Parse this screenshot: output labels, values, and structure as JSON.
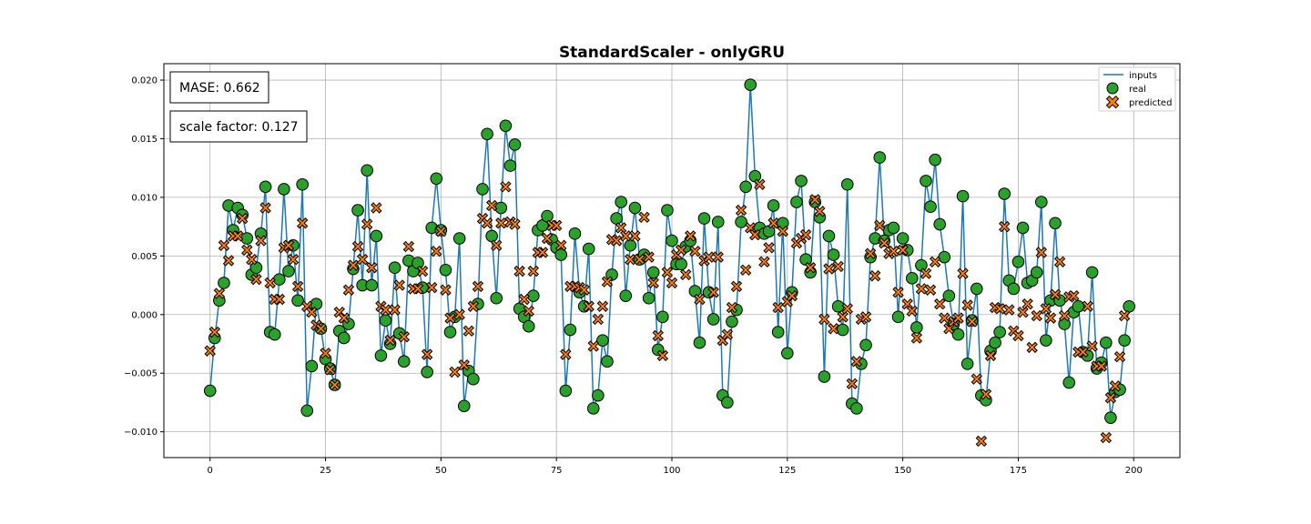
{
  "chart_data": {
    "type": "line",
    "title": "StandardScaler - onlyGRU",
    "xlabel": "",
    "ylabel": "",
    "xlim": [
      -10,
      210
    ],
    "ylim": [
      -0.0122,
      0.0214
    ],
    "xticks": [
      0,
      25,
      50,
      75,
      100,
      125,
      150,
      175,
      200
    ],
    "xtick_labels": [
      "0",
      "25",
      "50",
      "75",
      "100",
      "125",
      "150",
      "175",
      "200"
    ],
    "yticks": [
      -0.01,
      -0.005,
      0.0,
      0.005,
      0.01,
      0.015,
      0.02
    ],
    "ytick_labels": [
      "−0.010",
      "−0.005",
      "0.000",
      "0.005",
      "0.010",
      "0.015",
      "0.020"
    ],
    "grid": true,
    "legend_position": "top-right",
    "annotations": [
      "MASE: 0.662",
      "scale factor: 0.127"
    ],
    "colors": {
      "inputs": "#1f77b4",
      "real": "#2ca02c",
      "predicted": "#ff7f0e",
      "edge": "#000000"
    },
    "series": [
      {
        "name": "inputs",
        "kind": "line",
        "x_start": 0,
        "values": [
          -0.0065,
          -0.002,
          0.0012,
          0.0027,
          0.0093,
          0.0072,
          0.0091,
          0.0085,
          0.0065,
          0.0034,
          0.004,
          0.0069,
          0.0109,
          -0.0015,
          -0.0017,
          0.003,
          0.0107,
          0.0037,
          0.0059,
          0.0012,
          0.0111,
          -0.0082,
          -0.0044,
          0.0009,
          -0.0012,
          -0.0038,
          -0.0046,
          -0.006,
          -0.0014,
          -0.002,
          -0.0008,
          0.0039,
          0.0089,
          0.0025,
          0.0123,
          0.0025,
          0.0067,
          -0.0035,
          -0.0005,
          -0.0025,
          0.004,
          -0.0016,
          -0.004,
          0.0046,
          0.0037,
          0.0044,
          0.0023,
          -0.0049,
          0.0074,
          0.0116,
          0.0072,
          0.0038,
          -0.0015,
          -0.0002,
          0.0065,
          -0.0078,
          -0.0048,
          -0.0055,
          0.0009,
          0.0107,
          0.0154,
          0.0067,
          0.0014,
          0.0091,
          0.0161,
          0.0127,
          0.0145,
          0.0005,
          -0.0002,
          -0.001,
          0.0016,
          0.0072,
          0.0076,
          0.0084,
          0.0064,
          0.0057,
          0.0051,
          -0.0065,
          -0.0013,
          0.0069,
          0.0019,
          0.0007,
          0.0056,
          -0.008,
          -0.0069,
          -0.0022,
          -0.004,
          0.0034,
          0.0082,
          0.0096,
          0.0016,
          0.0059,
          0.0091,
          0.0047,
          0.0051,
          0.0014,
          0.0036,
          -0.003,
          -0.0002,
          0.0089,
          0.0063,
          0.0043,
          0.0043,
          0.0058,
          0.0063,
          0.002,
          -0.0024,
          0.0082,
          0.0019,
          -0.0004,
          0.0079,
          -0.0069,
          -0.0075,
          -0.0006,
          0.0004,
          0.0079,
          0.0109,
          0.0196,
          0.0118,
          0.0074,
          0.0069,
          0.0071,
          0.0093,
          -0.0015,
          0.0078,
          -0.0033,
          0.0019,
          0.0096,
          0.0114,
          0.0047,
          0.0036,
          0.0096,
          0.0083,
          -0.0053,
          0.0067,
          0.0051,
          0.0007,
          -0.0013,
          0.0111,
          -0.0076,
          -0.008,
          -0.0042,
          -0.0026,
          0.0049,
          0.0065,
          0.0134,
          0.0063,
          0.0072,
          0.0074,
          -0.0002,
          0.0065,
          0.0055,
          0.0031,
          -0.0011,
          0.0042,
          0.0114,
          0.0092,
          0.0132,
          0.0077,
          0.0049,
          0.0016,
          -0.0008,
          -0.0017,
          0.0101,
          -0.0042,
          -0.0005,
          0.0022,
          -0.0069,
          -0.0073,
          -0.0031,
          -0.0024,
          -0.0015,
          0.0103,
          0.0029,
          0.0022,
          0.0045,
          0.0074,
          0.0027,
          0.0029,
          0.0036,
          0.0096,
          -0.0022,
          0.0012,
          0.0078,
          0.0012,
          -0.0008,
          -0.0058,
          0.0002,
          0.0007,
          -0.0032,
          -0.0035,
          0.0036,
          -0.0046,
          -0.0041,
          -0.0024,
          -0.0088,
          -0.0066,
          -0.0064,
          -0.0022,
          0.0007
        ]
      },
      {
        "name": "real",
        "kind": "scatter",
        "x_start": 0,
        "values": [
          -0.0065,
          -0.002,
          0.0012,
          0.0027,
          0.0093,
          0.0072,
          0.0091,
          0.0085,
          0.0065,
          0.0034,
          0.004,
          0.0069,
          0.0109,
          -0.0015,
          -0.0017,
          0.003,
          0.0107,
          0.0037,
          0.0059,
          0.0012,
          0.0111,
          -0.0082,
          -0.0044,
          0.0009,
          -0.0012,
          -0.0038,
          -0.0046,
          -0.006,
          -0.0014,
          -0.002,
          -0.0008,
          0.0039,
          0.0089,
          0.0025,
          0.0123,
          0.0025,
          0.0067,
          -0.0035,
          -0.0005,
          -0.0025,
          0.004,
          -0.0016,
          -0.004,
          0.0046,
          0.0037,
          0.0044,
          0.0023,
          -0.0049,
          0.0074,
          0.0116,
          0.0072,
          0.0038,
          -0.0015,
          -0.0002,
          0.0065,
          -0.0078,
          -0.0048,
          -0.0055,
          0.0009,
          0.0107,
          0.0154,
          0.0067,
          0.0014,
          0.0091,
          0.0161,
          0.0127,
          0.0145,
          0.0005,
          -0.0002,
          -0.001,
          0.0016,
          0.0072,
          0.0076,
          0.0084,
          0.0064,
          0.0057,
          0.0051,
          -0.0065,
          -0.0013,
          0.0069,
          0.0019,
          0.0007,
          0.0056,
          -0.008,
          -0.0069,
          -0.0022,
          -0.004,
          0.0034,
          0.0082,
          0.0096,
          0.0016,
          0.0059,
          0.0091,
          0.0047,
          0.0051,
          0.0014,
          0.0036,
          -0.003,
          -0.0002,
          0.0089,
          0.0063,
          0.0043,
          0.0043,
          0.0058,
          0.0063,
          0.002,
          -0.0024,
          0.0082,
          0.0019,
          -0.0004,
          0.0079,
          -0.0069,
          -0.0075,
          -0.0006,
          0.0004,
          0.0079,
          0.0109,
          0.0196,
          0.0118,
          0.0074,
          0.0069,
          0.0071,
          0.0093,
          -0.0015,
          0.0078,
          -0.0033,
          0.0019,
          0.0096,
          0.0114,
          0.0047,
          0.0036,
          0.0096,
          0.0083,
          -0.0053,
          0.0067,
          0.0051,
          0.0007,
          -0.0013,
          0.0111,
          -0.0076,
          -0.008,
          -0.0042,
          -0.0026,
          0.0049,
          0.0065,
          0.0134,
          0.0063,
          0.0072,
          0.0074,
          -0.0002,
          0.0065,
          0.0055,
          0.0031,
          -0.0011,
          0.0042,
          0.0114,
          0.0092,
          0.0132,
          0.0077,
          0.0049,
          0.0016,
          -0.0008,
          -0.0017,
          0.0101,
          -0.0042,
          -0.0005,
          0.0022,
          -0.0069,
          -0.0073,
          -0.0031,
          -0.0024,
          -0.0015,
          0.0103,
          0.0029,
          0.0022,
          0.0045,
          0.0074,
          0.0027,
          0.0029,
          0.0036,
          0.0096,
          -0.0022,
          0.0012,
          0.0078,
          0.0012,
          -0.0008,
          -0.0058,
          0.0002,
          0.0007,
          -0.0032,
          -0.0035,
          0.0036,
          -0.0046,
          -0.0041,
          -0.0024,
          -0.0088,
          -0.0066,
          -0.0064,
          -0.0022,
          0.0007
        ]
      },
      {
        "name": "predicted",
        "kind": "scatter",
        "x_start": 0,
        "values": [
          -0.0031,
          -0.0015,
          0.0018,
          0.0059,
          0.0046,
          0.0067,
          0.0067,
          0.0082,
          0.0055,
          0.0047,
          0.003,
          0.0063,
          0.0091,
          0.0027,
          0.0013,
          0.0013,
          0.0057,
          0.0059,
          0.0047,
          0.0024,
          0.0078,
          0.0007,
          0.0002,
          -0.0009,
          -0.0012,
          -0.0033,
          -0.0047,
          -0.006,
          0.0002,
          -0.0003,
          0.0021,
          0.0042,
          0.0058,
          0.0047,
          0.0077,
          0.004,
          0.0091,
          0.0007,
          0.0004,
          -0.0022,
          0.0004,
          0.0025,
          -0.0019,
          0.0058,
          0.0022,
          0.0022,
          0.0037,
          -0.0034,
          0.0023,
          0.0054,
          0.0071,
          0.0021,
          -0.0003,
          -0.0049,
          0.0,
          -0.0043,
          -0.0014,
          0.0007,
          0.0024,
          0.0082,
          0.0078,
          0.0093,
          0.0059,
          0.0078,
          0.0109,
          0.0079,
          0.0077,
          0.0037,
          0.0013,
          0.0003,
          0.0037,
          0.0053,
          0.0053,
          0.0065,
          0.0076,
          0.0076,
          0.0059,
          -0.0034,
          0.0024,
          0.0024,
          0.0023,
          0.0021,
          0.0007,
          -0.0027,
          -0.0004,
          0.0007,
          0.0028,
          0.0064,
          0.0063,
          0.0074,
          0.0067,
          0.0047,
          0.0067,
          0.0047,
          0.0083,
          0.0049,
          0.0027,
          -0.0018,
          -0.0035,
          0.0036,
          0.0027,
          0.0051,
          0.0055,
          0.0034,
          0.0067,
          0.0054,
          0.0013,
          0.0046,
          0.0049,
          0.0019,
          0.0049,
          -0.0022,
          -0.0017,
          0.0006,
          0.0024,
          0.0089,
          0.0038,
          0.0074,
          0.0068,
          0.0111,
          0.0045,
          0.0057,
          0.0078,
          0.0006,
          0.0071,
          0.0011,
          0.0016,
          0.0061,
          0.0065,
          0.0068,
          0.004,
          0.0098,
          0.0088,
          -0.0004,
          0.0039,
          -0.0012,
          0.0041,
          -0.0002,
          0.0005,
          -0.0059,
          -0.004,
          -0.0004,
          -0.0002,
          0.0052,
          0.0033,
          0.0076,
          0.0061,
          0.0052,
          0.0054,
          0.0019,
          0.0055,
          0.0009,
          0.0003,
          -0.002,
          0.0022,
          0.0035,
          0.0021,
          0.0045,
          0.0009,
          -0.0003,
          -0.0012,
          -0.0006,
          -0.0003,
          0.0035,
          0.0008,
          -0.0006,
          -0.0055,
          -0.0108,
          -0.0068,
          -0.0035,
          0.0006,
          0.0005,
          0.0075,
          0.0004,
          -0.0014,
          -0.0018,
          0.0002,
          0.0009,
          -0.0028,
          -0.0001,
          0.0053,
          0.0005,
          -0.0003,
          0.0017,
          0.0045,
          -0.0001,
          0.0015,
          0.0016,
          -0.0032,
          -0.0032,
          0.0007,
          -0.0027,
          -0.0044,
          -0.0044,
          -0.0105,
          -0.0071,
          -0.0061,
          -0.0036,
          -0.0001
        ]
      }
    ]
  }
}
